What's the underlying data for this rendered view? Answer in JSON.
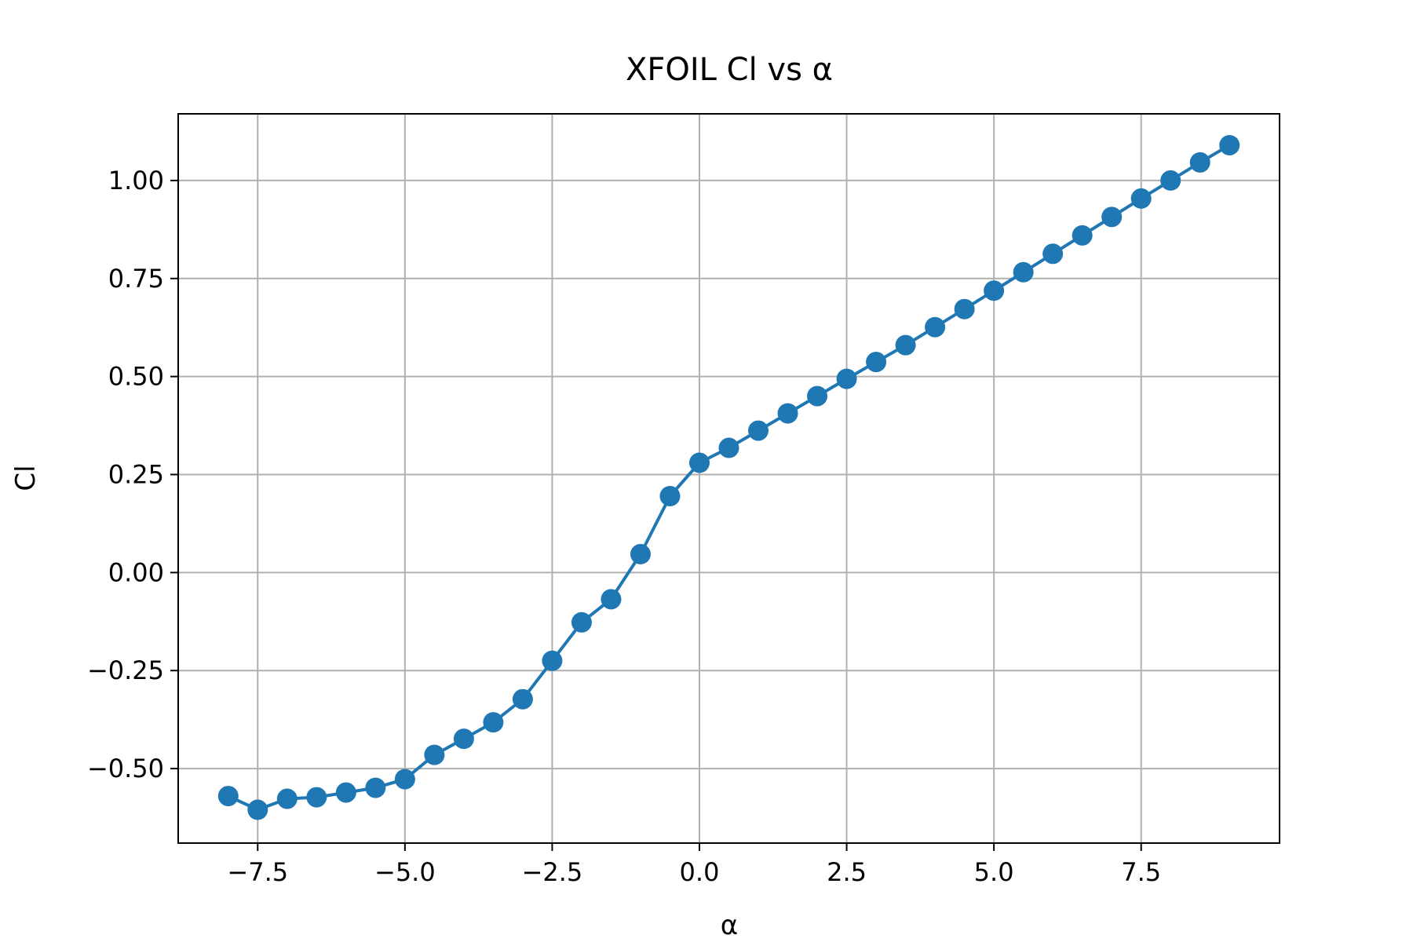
{
  "chart_data": {
    "type": "line",
    "title": "XFOIL Cl vs α",
    "xlabel": "α",
    "ylabel": "Cl",
    "xlim": [
      -8.85,
      9.85
    ],
    "ylim": [
      -0.69,
      1.17
    ],
    "grid": true,
    "x_ticks": [
      -7.5,
      -5.0,
      -2.5,
      0.0,
      2.5,
      5.0,
      7.5
    ],
    "x_tick_labels": [
      "−7.5",
      "−5.0",
      "−2.5",
      "0.0",
      "2.5",
      "5.0",
      "7.5"
    ],
    "y_ticks": [
      -0.5,
      -0.25,
      0.0,
      0.25,
      0.5,
      0.75,
      1.0
    ],
    "y_tick_labels": [
      "−0.50",
      "−0.25",
      "0.00",
      "0.25",
      "0.50",
      "0.75",
      "1.00"
    ],
    "series": [
      {
        "color": "#1f77b4",
        "marker": "circle",
        "x": [
          -8.0,
          -7.5,
          -7.0,
          -6.5,
          -6.0,
          -5.5,
          -5.0,
          -4.5,
          -4.0,
          -3.5,
          -3.0,
          -2.5,
          -2.0,
          -1.5,
          -1.0,
          -0.5,
          0.0,
          0.5,
          1.0,
          1.5,
          2.0,
          2.5,
          3.0,
          3.5,
          4.0,
          4.5,
          5.0,
          5.5,
          6.0,
          6.5,
          7.0,
          7.5,
          8.0,
          8.5,
          9.0
        ],
        "y": [
          -0.57,
          -0.605,
          -0.577,
          -0.573,
          -0.561,
          -0.549,
          -0.527,
          -0.465,
          -0.424,
          -0.382,
          -0.323,
          -0.225,
          -0.127,
          -0.068,
          0.047,
          0.195,
          0.28,
          0.318,
          0.362,
          0.406,
          0.45,
          0.494,
          0.537,
          0.58,
          0.626,
          0.672,
          0.719,
          0.766,
          0.813,
          0.86,
          0.907,
          0.954,
          1.0,
          1.046,
          1.09
        ]
      }
    ]
  }
}
